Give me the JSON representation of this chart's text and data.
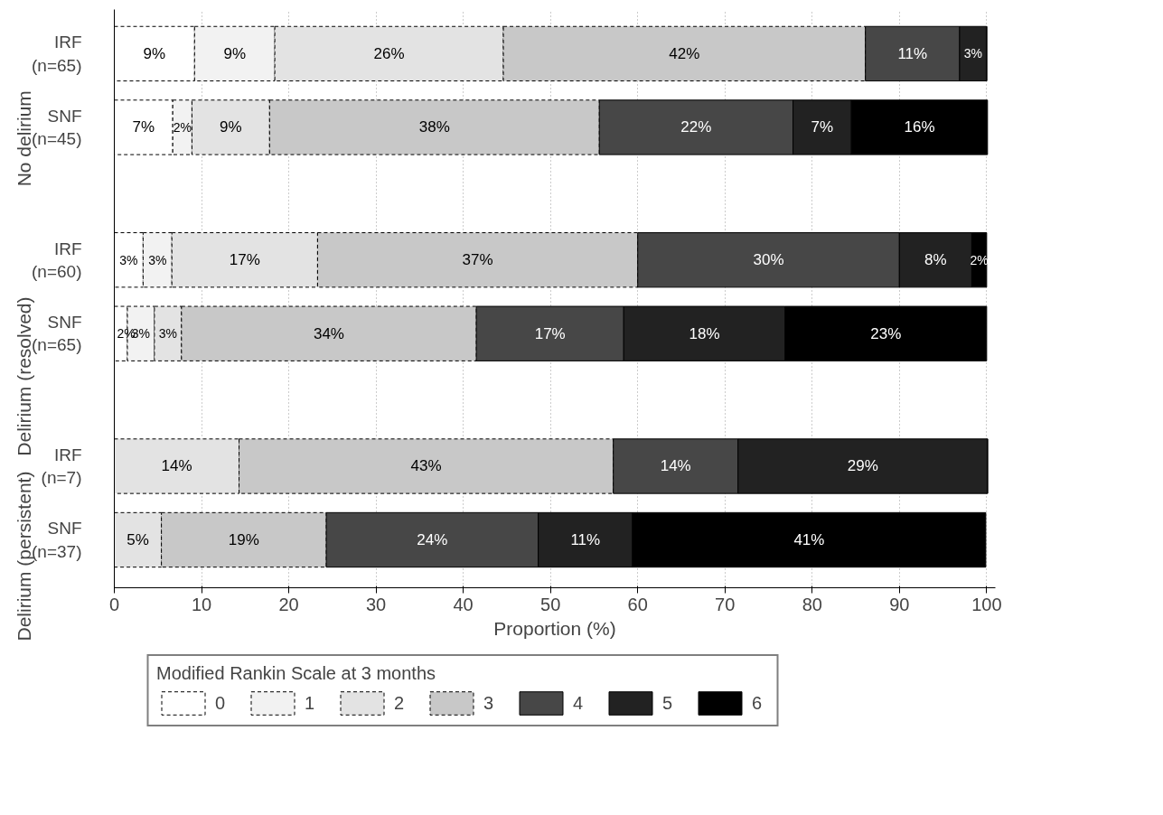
{
  "chart_data": {
    "type": "bar",
    "orientation": "horizontal",
    "stacked": true,
    "categories": [
      "IRF\n(n=65)",
      "SNF\n(n=45)",
      "IRF\n(n=60)",
      "SNF\n(n=65)",
      "IRF\n(n=7)",
      "SNF\n(n=37)"
    ],
    "annotations": [
      "No delirium",
      "Delirium (resolved)",
      "Delirium (persistent)"
    ],
    "xlabel": "Proportion (%)",
    "legend_title": "Modified Rankin Scale at 3 months",
    "legend": "bottom",
    "grid": "x",
    "xlim": [
      0,
      101
    ],
    "xticks": [
      0,
      10,
      20,
      30,
      40,
      50,
      60,
      70,
      80,
      90,
      100
    ],
    "series": [
      {
        "name": "0",
        "color": "#ffffff",
        "line_style": "dashed",
        "values": [
          9.2,
          6.7,
          3.3,
          1.5,
          0,
          0
        ],
        "value_labels": [
          "9%",
          "7%",
          "3%",
          "2%",
          null,
          null
        ]
      },
      {
        "name": "1",
        "color": "#f2f2f2",
        "line_style": "dashed",
        "values": [
          9.2,
          2.2,
          3.3,
          3.1,
          0,
          0
        ],
        "value_labels": [
          "9%",
          "2%",
          "3%",
          "3%",
          null,
          null
        ]
      },
      {
        "name": "2",
        "color": "#e3e3e3",
        "line_style": "dashed",
        "values": [
          26.2,
          8.9,
          16.7,
          3.1,
          14.3,
          5.4
        ],
        "value_labels": [
          "26%",
          "9%",
          "17%",
          "3%",
          "14%",
          "5%"
        ]
      },
      {
        "name": "3",
        "color": "#c8c8c8",
        "line_style": "dashed",
        "values": [
          41.5,
          37.8,
          36.7,
          33.8,
          42.9,
          18.9
        ],
        "value_labels": [
          "42%",
          "38%",
          "37%",
          "34%",
          "43%",
          "19%"
        ]
      },
      {
        "name": "4",
        "color": "#474747",
        "line_style": "solid",
        "values": [
          10.8,
          22.2,
          30.0,
          16.9,
          14.3,
          24.3
        ],
        "value_labels": [
          "11%",
          "22%",
          "30%",
          "17%",
          "14%",
          "24%"
        ]
      },
      {
        "name": "5",
        "color": "#222222",
        "line_style": "solid",
        "values": [
          3.1,
          6.7,
          8.3,
          18.5,
          28.6,
          10.8
        ],
        "value_labels": [
          "3%",
          "7%",
          "8%",
          "18%",
          "29%",
          "11%"
        ]
      },
      {
        "name": "6",
        "color": "#000000",
        "line_style": "solid",
        "values": [
          0,
          15.6,
          1.7,
          23.1,
          0,
          40.5
        ],
        "value_labels": [
          null,
          "16%",
          "2%",
          "23%",
          null,
          "41%"
        ]
      }
    ]
  }
}
